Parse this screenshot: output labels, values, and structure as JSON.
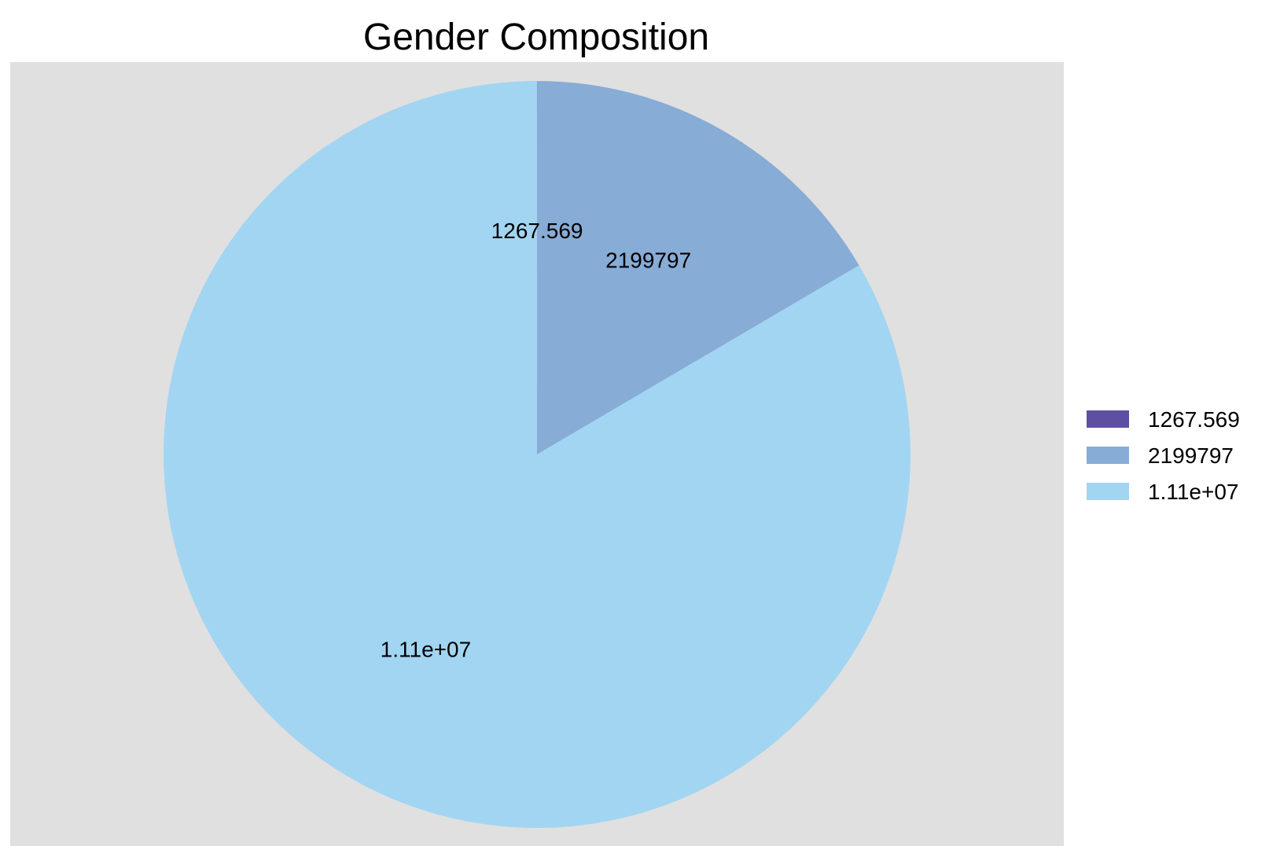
{
  "chart_data": {
    "type": "pie",
    "title": "Gender Composition",
    "slices": [
      {
        "label": "1267.569",
        "value": 1267.569,
        "color": "#5e4fa2"
      },
      {
        "label": "2199797",
        "value": 2199797,
        "color": "#87acd6"
      },
      {
        "label": "1.11e+07",
        "value": 11100000,
        "color": "#a2d5f2"
      }
    ],
    "legend": {
      "position": "right",
      "entries": [
        "1267.569",
        "2199797",
        "1.11e+07"
      ]
    },
    "panel_background": "#e0e0e0"
  }
}
